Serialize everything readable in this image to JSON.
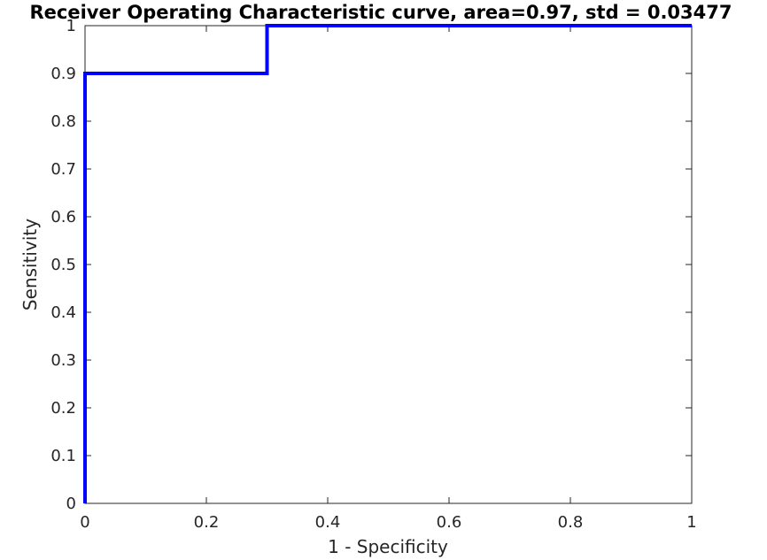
{
  "chart_data": {
    "type": "line",
    "title": "Receiver Operating Characteristic curve, area=0.97, std = 0.03477",
    "xlabel": "1 - Specificity",
    "ylabel": "Sensitivity",
    "xlim": [
      0,
      1
    ],
    "ylim": [
      0,
      1
    ],
    "x_ticks": [
      "0",
      "0.2",
      "0.4",
      "0.6",
      "0.8",
      "1"
    ],
    "y_ticks": [
      "0",
      "0.1",
      "0.2",
      "0.3",
      "0.4",
      "0.5",
      "0.6",
      "0.7",
      "0.8",
      "0.9",
      "1"
    ],
    "grid": false,
    "series": [
      {
        "color": "#0000ff",
        "x": [
          0,
          0,
          0.3,
          0.3,
          1
        ],
        "y": [
          0,
          0.9,
          0.9,
          1,
          1
        ]
      }
    ]
  }
}
